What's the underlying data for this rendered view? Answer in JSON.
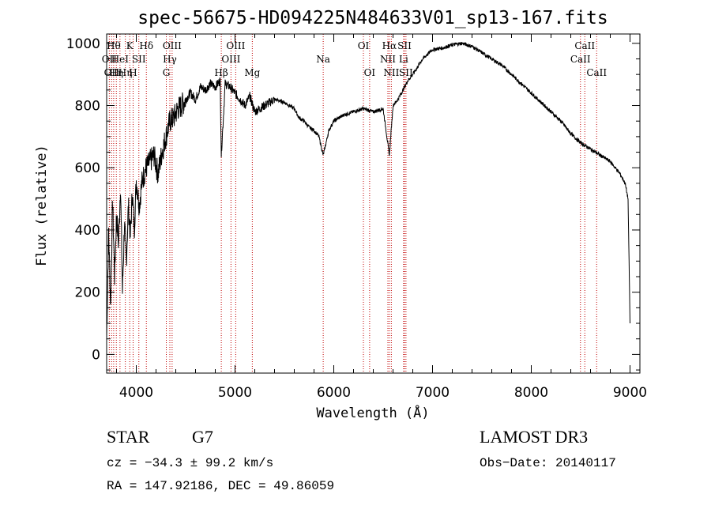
{
  "chart_data": {
    "type": "line",
    "title": "spec-56675-HD094225N484633V01_sp13-167.fits",
    "xlabel": "Wavelength (Å)",
    "ylabel": "Flux (relative)",
    "xlim": [
      3700,
      9100
    ],
    "ylim": [
      -60,
      1030
    ],
    "xticks": [
      4000,
      5000,
      6000,
      7000,
      8000,
      9000
    ],
    "yticks": [
      0,
      200,
      400,
      600,
      800,
      1000
    ],
    "grid": false,
    "series": [
      {
        "x": [
          3700,
          3720,
          3740,
          3760,
          3780,
          3800,
          3820,
          3840,
          3860,
          3880,
          3900,
          3920,
          3940,
          3960,
          3980,
          4000,
          4030,
          4060,
          4100,
          4140,
          4180,
          4220,
          4260,
          4300,
          4340,
          4380,
          4420,
          4460,
          4500,
          4550,
          4600,
          4650,
          4700,
          4750,
          4800,
          4850,
          4861,
          4900,
          4950,
          5000,
          5050,
          5100,
          5150,
          5200,
          5300,
          5400,
          5500,
          5600,
          5650,
          5700,
          5750,
          5800,
          5850,
          5893,
          5950,
          6000,
          6100,
          6200,
          6300,
          6400,
          6500,
          6563,
          6600,
          6650,
          6700,
          6750,
          6800,
          6900,
          7000,
          7100,
          7200,
          7300,
          7400,
          7500,
          7600,
          7700,
          7800,
          7900,
          8000,
          8100,
          8200,
          8300,
          8400,
          8500,
          8600,
          8700,
          8800,
          8900,
          8950,
          8980,
          9000
        ],
        "y": [
          50,
          400,
          150,
          500,
          250,
          450,
          350,
          550,
          200,
          420,
          300,
          480,
          380,
          520,
          400,
          560,
          480,
          560,
          600,
          620,
          640,
          580,
          650,
          700,
          750,
          760,
          790,
          800,
          820,
          840,
          820,
          860,
          850,
          870,
          860,
          880,
          640,
          870,
          860,
          840,
          820,
          800,
          830,
          780,
          800,
          820,
          810,
          790,
          760,
          750,
          730,
          720,
          700,
          640,
          720,
          750,
          770,
          780,
          790,
          780,
          790,
          640,
          800,
          820,
          850,
          880,
          900,
          950,
          980,
          985,
          995,
          1000,
          990,
          970,
          950,
          930,
          900,
          870,
          840,
          810,
          780,
          750,
          710,
          680,
          660,
          640,
          620,
          580,
          550,
          500,
          100
        ]
      }
    ],
    "spectral_lines": [
      {
        "wavelength": 3727,
        "label": "OII",
        "row": 2
      },
      {
        "wavelength": 3750,
        "label": "OII",
        "row": 3
      },
      {
        "wavelength": 3771,
        "label": "Hθ",
        "row": 1
      },
      {
        "wavelength": 3798,
        "label": "Hη",
        "row": 3
      },
      {
        "wavelength": 3835,
        "label": "HeI",
        "row": 2
      },
      {
        "wavelength": 3889,
        "label": "Hη",
        "row": 3
      },
      {
        "wavelength": 3934,
        "label": "K",
        "row": 1
      },
      {
        "wavelength": 3968,
        "label": "H",
        "row": 3
      },
      {
        "wavelength": 4026,
        "label": "SII",
        "row": 2
      },
      {
        "wavelength": 4102,
        "label": "Hδ",
        "row": 1
      },
      {
        "wavelength": 4304,
        "label": "G",
        "row": 3
      },
      {
        "wavelength": 4340,
        "label": "Hγ",
        "row": 2
      },
      {
        "wavelength": 4363,
        "label": "OIII",
        "row": 1
      },
      {
        "wavelength": 4861,
        "label": "Hβ",
        "row": 3
      },
      {
        "wavelength": 4959,
        "label": "OIII",
        "row": 2
      },
      {
        "wavelength": 5007,
        "label": "OIII",
        "row": 1
      },
      {
        "wavelength": 5175,
        "label": "Mg",
        "row": 3
      },
      {
        "wavelength": 5893,
        "label": "Na",
        "row": 2
      },
      {
        "wavelength": 6300,
        "label": "OI",
        "row": 1
      },
      {
        "wavelength": 6363,
        "label": "OI",
        "row": 3
      },
      {
        "wavelength": 6548,
        "label": "NII",
        "row": 2
      },
      {
        "wavelength": 6563,
        "label": "Hα",
        "row": 1
      },
      {
        "wavelength": 6583,
        "label": "NII",
        "row": 3
      },
      {
        "wavelength": 6707,
        "label": "Li",
        "row": 2
      },
      {
        "wavelength": 6716,
        "label": "SII",
        "row": 1
      },
      {
        "wavelength": 6731,
        "label": "SII",
        "row": 3
      },
      {
        "wavelength": 8498,
        "label": "CaII",
        "row": 2
      },
      {
        "wavelength": 8542,
        "label": "CaII",
        "row": 1
      },
      {
        "wavelength": 8662,
        "label": "CaII",
        "row": 3
      }
    ]
  },
  "info": {
    "object_class": "STAR",
    "subclass": "G7",
    "redshift_text": "cz = −34.3 ± 99.2 km/s",
    "coords_text": "RA = 147.92186, DEC =  49.86059",
    "survey": "LAMOST DR3",
    "obs_date_text": "Obs−Date: 20140117"
  },
  "colors": {
    "spectrum": "#000000",
    "line_markers": "#c00000",
    "axes": "#000000"
  }
}
